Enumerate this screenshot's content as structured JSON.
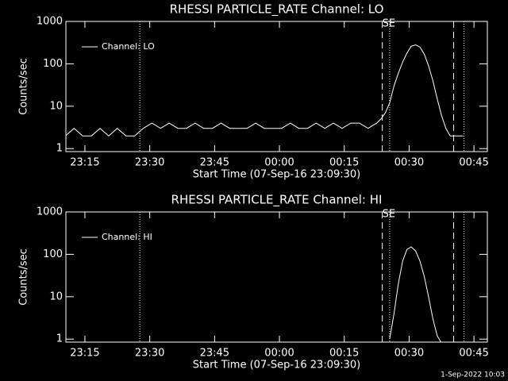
{
  "chart_data": [
    {
      "type": "line",
      "title": "RHESSI PARTICLE_RATE Channel: LO",
      "xlabel": "Start Time (07-Sep-16 23:09:30)",
      "ylabel": "Counts/sec",
      "log_y": true,
      "annotation": "SE",
      "xlim": [
        1.1,
        98.6
      ],
      "ylim": [
        0.85,
        1000
      ],
      "xticks": [
        {
          "value": 5.5,
          "label": "23:15"
        },
        {
          "value": 20.5,
          "label": "23:30"
        },
        {
          "value": 35.5,
          "label": "23:45"
        },
        {
          "value": 50.5,
          "label": "00:00"
        },
        {
          "value": 65.5,
          "label": "00:15"
        },
        {
          "value": 80.5,
          "label": "00:30"
        },
        {
          "value": 95.5,
          "label": "00:45"
        }
      ],
      "yticks": [
        1,
        10,
        100,
        1000
      ],
      "markers": [
        {
          "x": 18.2,
          "style": "dotted"
        },
        {
          "x": 74.3,
          "style": "dashed"
        },
        {
          "x": 76.0,
          "style": "dotted"
        },
        {
          "x": 90.8,
          "style": "dashed"
        },
        {
          "x": 93.2,
          "style": "dotted"
        }
      ],
      "legend": "upper left",
      "x": [
        1,
        3,
        5,
        7,
        9,
        11,
        13,
        15,
        17,
        19,
        21,
        23,
        25,
        27,
        29,
        31,
        33,
        35,
        37,
        39,
        41,
        43,
        45,
        47,
        49,
        51,
        53,
        55,
        57,
        59,
        61,
        63,
        65,
        67,
        69,
        71,
        73,
        74,
        75,
        76,
        77,
        78,
        79,
        80,
        81,
        82,
        83,
        84,
        85,
        86,
        87,
        88,
        89,
        90,
        91,
        92,
        93
      ],
      "series": [
        {
          "name": "Channel: LO",
          "color": "#ffffff",
          "values": [
            2,
            3,
            2,
            2,
            3,
            2,
            3,
            2,
            2,
            3,
            4,
            3,
            4,
            3,
            3,
            4,
            3,
            3,
            4,
            3,
            3,
            3,
            4,
            3,
            3,
            3,
            4,
            3,
            3,
            4,
            3,
            4,
            3,
            4,
            4,
            3,
            4,
            5,
            7,
            12,
            30,
            60,
            110,
            180,
            260,
            280,
            250,
            170,
            90,
            40,
            15,
            6,
            3,
            2,
            2,
            2,
            2
          ]
        }
      ]
    },
    {
      "type": "line",
      "title": "RHESSI PARTICLE_RATE Channel: HI",
      "xlabel": "Start Time (07-Sep-16 23:09:30)",
      "ylabel": "Counts/sec",
      "log_y": true,
      "annotation": "SE",
      "xlim": [
        1.1,
        98.6
      ],
      "ylim": [
        0.85,
        1000
      ],
      "xticks": [
        {
          "value": 5.5,
          "label": "23:15"
        },
        {
          "value": 20.5,
          "label": "23:30"
        },
        {
          "value": 35.5,
          "label": "23:45"
        },
        {
          "value": 50.5,
          "label": "00:00"
        },
        {
          "value": 65.5,
          "label": "00:15"
        },
        {
          "value": 80.5,
          "label": "00:30"
        },
        {
          "value": 95.5,
          "label": "00:45"
        }
      ],
      "yticks": [
        1,
        10,
        100,
        1000
      ],
      "markers": [
        {
          "x": 18.2,
          "style": "dotted"
        },
        {
          "x": 74.3,
          "style": "dashed"
        },
        {
          "x": 76.0,
          "style": "dotted"
        },
        {
          "x": 90.8,
          "style": "dashed"
        },
        {
          "x": 93.2,
          "style": "dotted"
        }
      ],
      "legend": "upper left",
      "x": [
        76,
        77,
        78,
        79,
        80,
        81,
        82,
        83,
        84,
        85,
        86,
        87,
        88
      ],
      "series": [
        {
          "name": "Channel: HI",
          "color": "#ffffff",
          "values": [
            1,
            4,
            20,
            70,
            130,
            150,
            120,
            70,
            30,
            10,
            3,
            1.2,
            0.8
          ]
        }
      ]
    }
  ],
  "footer": "1-Sep-2022 10:03"
}
